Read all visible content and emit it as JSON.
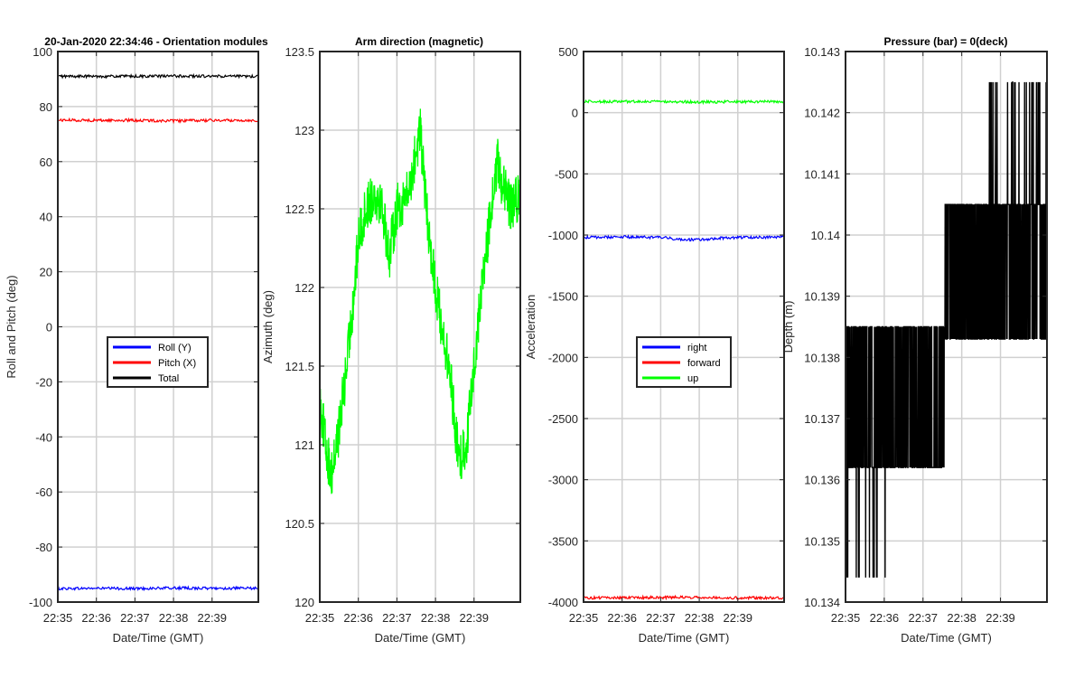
{
  "chart_data": [
    {
      "type": "line",
      "title": "20-Jan-2020 22:34:46 - Orientation modules",
      "xlabel": "Date/Time (GMT)",
      "ylabel": "Roll and Pitch (deg)",
      "xticks": [
        "22:35",
        "22:36",
        "22:37",
        "22:38",
        "22:39"
      ],
      "xlim_minutes": [
        0,
        5.2
      ],
      "ylim": [
        -100,
        100
      ],
      "yticks": [
        -100,
        -80,
        -60,
        -40,
        -20,
        0,
        20,
        40,
        60,
        80,
        100
      ],
      "grid": true,
      "legend": {
        "placement": "center",
        "entries": [
          "Roll (Y)",
          "Pitch (X)",
          "Total"
        ]
      },
      "series": [
        {
          "name": "Roll (Y)",
          "color": "#0000ff",
          "x": [
            0,
            1,
            2,
            3,
            4,
            5.2
          ],
          "values": [
            -95.1,
            -95.0,
            -95.1,
            -94.9,
            -95.0,
            -95.0
          ]
        },
        {
          "name": "Pitch (X)",
          "color": "#ff0000",
          "x": [
            0,
            1,
            2,
            3,
            4,
            5.2
          ],
          "values": [
            75.1,
            75.0,
            75.0,
            74.8,
            75.0,
            75.0
          ]
        },
        {
          "name": "Total",
          "color": "#000000",
          "x": [
            0,
            1,
            2,
            3,
            4,
            5.2
          ],
          "values": [
            91.0,
            91.0,
            91.0,
            91.1,
            91.0,
            91.0
          ]
        }
      ]
    },
    {
      "type": "line",
      "title": "Arm direction (magnetic)",
      "xlabel": "Date/Time (GMT)",
      "ylabel": "Azimuth (deg)",
      "xticks": [
        "22:35",
        "22:36",
        "22:37",
        "22:38",
        "22:39"
      ],
      "xlim_minutes": [
        0,
        5.2
      ],
      "ylim": [
        120,
        123.5
      ],
      "yticks": [
        120,
        120.5,
        121,
        121.5,
        122,
        122.5,
        123,
        123.5
      ],
      "grid": true,
      "series": [
        {
          "color": "#00ff00",
          "x": [
            0,
            0.15,
            0.3,
            0.5,
            0.7,
            0.9,
            1.0,
            1.2,
            1.4,
            1.6,
            1.8,
            2.0,
            2.3,
            2.6,
            2.8,
            3.0,
            3.2,
            3.4,
            3.6,
            3.8,
            4.0,
            4.2,
            4.4,
            4.6,
            4.8,
            5.0,
            5.2
          ],
          "values": [
            121.3,
            121.0,
            120.8,
            121.1,
            121.5,
            122.0,
            122.3,
            122.5,
            122.6,
            122.55,
            122.2,
            122.5,
            122.6,
            123.0,
            122.4,
            122.0,
            121.7,
            121.4,
            120.9,
            121.0,
            121.5,
            122.0,
            122.4,
            122.8,
            122.6,
            122.5,
            122.6
          ]
        }
      ]
    },
    {
      "type": "line",
      "title": "",
      "xlabel": "Date/Time (GMT)",
      "ylabel": "Acceleration",
      "xticks": [
        "22:35",
        "22:36",
        "22:37",
        "22:38",
        "22:39"
      ],
      "xlim_minutes": [
        0,
        5.2
      ],
      "ylim": [
        -4000,
        500
      ],
      "yticks": [
        -4000,
        -3500,
        -3000,
        -2500,
        -2000,
        -1500,
        -1000,
        -500,
        0,
        500
      ],
      "grid": true,
      "legend": {
        "placement": "center",
        "entries": [
          "right",
          "forward",
          "up"
        ]
      },
      "series": [
        {
          "name": "right",
          "color": "#0000ff",
          "x": [
            0,
            1,
            2,
            2.5,
            3,
            3.5,
            4,
            5.2
          ],
          "values": [
            -1020,
            -1015,
            -1020,
            -1035,
            -1040,
            -1025,
            -1020,
            -1015
          ]
        },
        {
          "name": "forward",
          "color": "#ff0000",
          "x": [
            0,
            1,
            2,
            3,
            4,
            5.2
          ],
          "values": [
            -3965,
            -3965,
            -3962,
            -3960,
            -3965,
            -3965
          ]
        },
        {
          "name": "up",
          "color": "#00ff00",
          "x": [
            0,
            1,
            2,
            3,
            4,
            5.2
          ],
          "values": [
            92,
            90,
            90,
            88,
            90,
            90
          ]
        }
      ]
    },
    {
      "type": "line",
      "title": "Pressure (bar) = 0(deck)",
      "xlabel": "Date/Time (GMT)",
      "ylabel": "Depth (m)",
      "xticks": [
        "22:35",
        "22:36",
        "22:37",
        "22:38",
        "22:39"
      ],
      "xlim_minutes": [
        0,
        5.2
      ],
      "ylim": [
        10.134,
        10.143
      ],
      "yticks": [
        "10.134",
        "10.135",
        "10.136",
        "10.137",
        "10.138",
        "10.139",
        "10.14",
        "10.141",
        "10.142",
        "10.143"
      ],
      "grid": true,
      "series": [
        {
          "color": "#000000",
          "x": [
            0,
            2.6,
            5.2
          ],
          "values": [
            10.1364,
            10.1385,
            10.1405
          ]
        }
      ]
    }
  ]
}
